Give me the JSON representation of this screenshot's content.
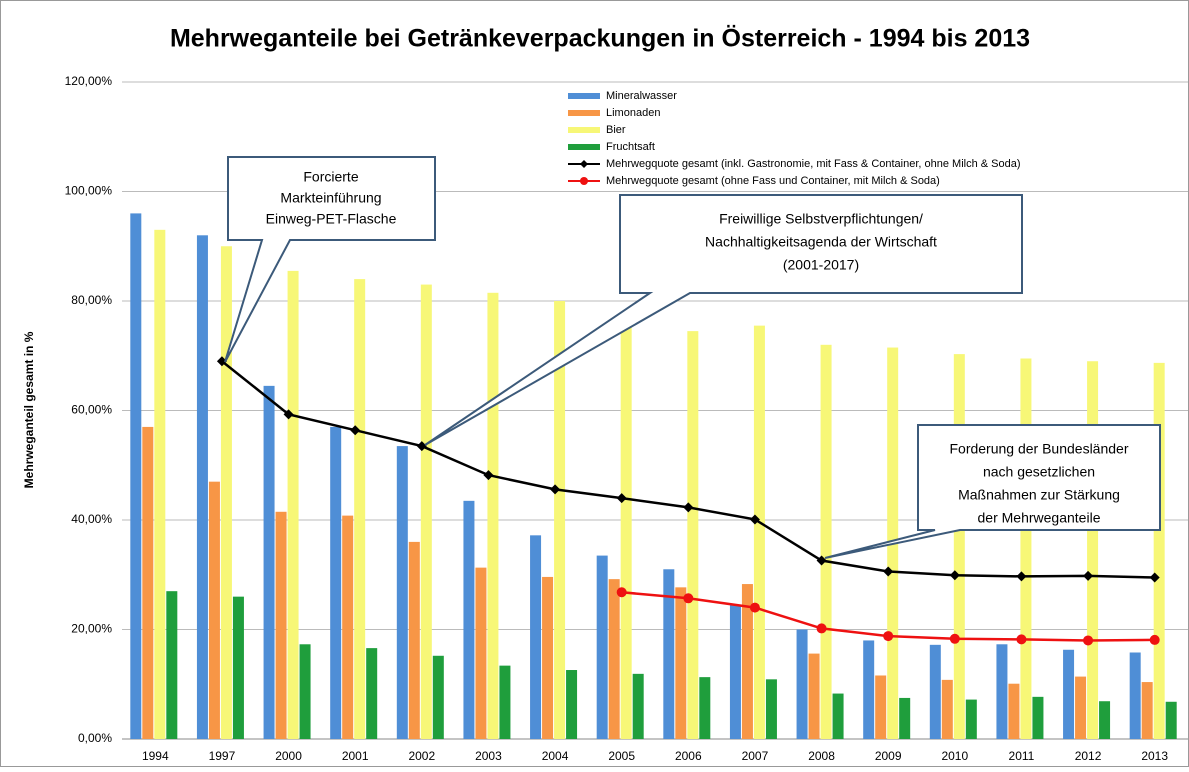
{
  "chart_data": {
    "type": "bar_line",
    "title": "Mehrweganteile bei Getränkeverpackungen in Österreich - 1994 bis 2013",
    "y_label": "Mehrweganteil gesamt in %",
    "categories": [
      "1994",
      "1997",
      "2000",
      "2001",
      "2002",
      "2003",
      "2004",
      "2005",
      "2006",
      "2007",
      "2008",
      "2009",
      "2010",
      "2011",
      "2012",
      "2013"
    ],
    "series": [
      {
        "name": "Mineralwasser",
        "kind": "bar",
        "color": "#4f8ed6",
        "values": [
          96,
          92,
          64.5,
          57,
          53.5,
          43.5,
          37.2,
          33.5,
          31,
          24.5,
          20,
          18,
          17.2,
          17.3,
          16.3,
          15.8
        ]
      },
      {
        "name": "Limonaden",
        "kind": "bar",
        "color": "#f79646",
        "values": [
          57,
          47,
          41.5,
          40.8,
          36,
          31.3,
          29.6,
          29.2,
          27.7,
          28.3,
          15.6,
          11.6,
          10.8,
          10.1,
          11.4,
          10.4
        ]
      },
      {
        "name": "Bier",
        "kind": "bar",
        "color": "#f7f777",
        "values": [
          93,
          90,
          85.5,
          84,
          83,
          81.5,
          80,
          78,
          74.5,
          75.5,
          72,
          71.5,
          70.3,
          69.5,
          69,
          68.7
        ]
      },
      {
        "name": "Fruchtsaft",
        "kind": "bar",
        "color": "#1f9e3c",
        "values": [
          27,
          26,
          17.3,
          16.6,
          15.2,
          13.4,
          12.6,
          11.9,
          11.3,
          10.9,
          8.3,
          7.5,
          7.2,
          7.7,
          6.9,
          6.8
        ]
      },
      {
        "name": "Mehrwegquote gesamt (inkl. Gastronomie, mit Fass & Container, ohne Milch & Soda)",
        "kind": "line",
        "marker": "diamond",
        "color": "#000000",
        "values": [
          null,
          69,
          59.3,
          56.4,
          53.5,
          48.2,
          45.6,
          44,
          42.3,
          40.1,
          32.6,
          30.6,
          29.9,
          29.7,
          29.8,
          29.5
        ]
      },
      {
        "name": "Mehrwegquote gesamt (ohne Fass und Container, mit Milch & Soda)",
        "kind": "line",
        "marker": "circle",
        "color": "#ee1111",
        "values": [
          null,
          null,
          null,
          null,
          null,
          null,
          null,
          26.8,
          25.7,
          24,
          20.2,
          18.8,
          18.3,
          18.2,
          18,
          18.1
        ]
      }
    ],
    "ylim": [
      0,
      120
    ],
    "yticks": [
      {
        "value": 0,
        "label": "0,00%"
      },
      {
        "value": 20,
        "label": "20,00%"
      },
      {
        "value": 40,
        "label": "40,00%"
      },
      {
        "value": 60,
        "label": "60,00%"
      },
      {
        "value": 80,
        "label": "80,00%"
      },
      {
        "value": 100,
        "label": "100,00%"
      },
      {
        "value": 120,
        "label": "120,00%"
      }
    ],
    "grid": true,
    "annotations": [
      {
        "lines": [
          "Forcierte",
          "Markteinführung",
          "Einweg-PET-Flasche"
        ]
      },
      {
        "lines": [
          "Freiwillige Selbstverpflichtungen/",
          "Nachhaltigkeitsagenda der Wirtschaft",
          "(2001-2017)"
        ]
      },
      {
        "lines": [
          "Forderung der Bundesländer",
          "nach gesetzlichen",
          "Maßnahmen zur Stärkung",
          "der Mehrweganteile"
        ]
      }
    ]
  }
}
